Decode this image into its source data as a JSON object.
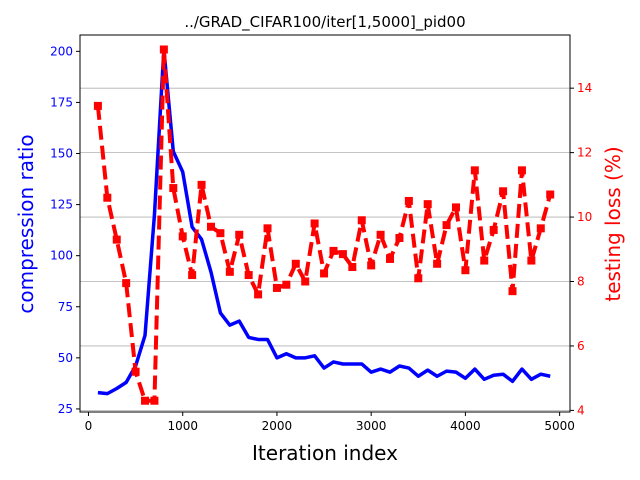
{
  "chart_data": {
    "type": "line",
    "title": "../GRAD_CIFAR100/iter[1,5000]_pid00",
    "xlabel": "Iteration index",
    "ylabel_left": "compression ratio",
    "ylabel_right": "testing loss (%)",
    "xlim": [
      -90,
      5110
    ],
    "ylim_left": [
      23.5,
      208
    ],
    "ylim_right": [
      3.95,
      15.65
    ],
    "x_ticks": [
      0,
      1000,
      2000,
      3000,
      4000,
      5000
    ],
    "y_ticks_left": [
      25,
      50,
      75,
      100,
      125,
      150,
      175,
      200
    ],
    "y_ticks_right": [
      4,
      6,
      8,
      10,
      12,
      14
    ],
    "grid": "horizontal lines at right-axis ticks",
    "series": [
      {
        "axis": "left",
        "color": "#0000ff",
        "style": "solid",
        "x": [
          100,
          200,
          300,
          400,
          500,
          600,
          700,
          800,
          900,
          1000,
          1100,
          1200,
          1300,
          1400,
          1500,
          1600,
          1700,
          1800,
          1900,
          2000,
          2100,
          2200,
          2300,
          2400,
          2500,
          2600,
          2700,
          2800,
          2900,
          3000,
          3100,
          3200,
          3300,
          3400,
          3500,
          3600,
          3700,
          3800,
          3900,
          4000,
          4100,
          4200,
          4300,
          4400,
          4500,
          4600,
          4700,
          4800,
          4900
        ],
        "values": [
          33,
          32.5,
          35,
          38,
          46,
          61,
          120,
          201,
          151,
          141,
          114,
          108,
          92,
          72,
          66,
          68,
          60,
          59,
          59,
          50,
          52,
          50,
          50,
          51,
          45,
          48,
          47,
          47,
          47,
          43,
          44.5,
          43,
          46,
          45,
          41,
          44,
          41,
          43.5,
          43,
          40,
          44.5,
          39.5,
          41.5,
          42,
          38.5,
          44.5,
          39.5,
          42,
          41
        ]
      },
      {
        "axis": "right",
        "color": "#ff0000",
        "style": "dashed",
        "marker": "square",
        "x": [
          100,
          200,
          300,
          400,
          500,
          600,
          700,
          800,
          900,
          1000,
          1100,
          1200,
          1300,
          1400,
          1500,
          1600,
          1700,
          1800,
          1900,
          2000,
          2100,
          2200,
          2300,
          2400,
          2500,
          2600,
          2700,
          2800,
          2900,
          3000,
          3100,
          3200,
          3300,
          3400,
          3500,
          3600,
          3700,
          3800,
          3900,
          4000,
          4100,
          4200,
          4300,
          4400,
          4500,
          4600,
          4700,
          4800,
          4900
        ],
        "values": [
          13.45,
          10.6,
          9.3,
          7.95,
          5.2,
          4.3,
          4.3,
          15.2,
          10.9,
          9.4,
          8.2,
          11,
          9.7,
          9.5,
          8.3,
          9.45,
          8.2,
          7.6,
          9.65,
          7.8,
          7.9,
          8.55,
          8,
          9.8,
          8.25,
          8.95,
          8.85,
          8.45,
          9.9,
          8.5,
          9.45,
          8.7,
          9.35,
          10.5,
          8.1,
          10.4,
          8.55,
          9.75,
          10.3,
          8.35,
          11.45,
          8.65,
          9.6,
          10.8,
          7.7,
          11.45,
          8.65,
          9.65,
          10.7
        ]
      }
    ]
  }
}
